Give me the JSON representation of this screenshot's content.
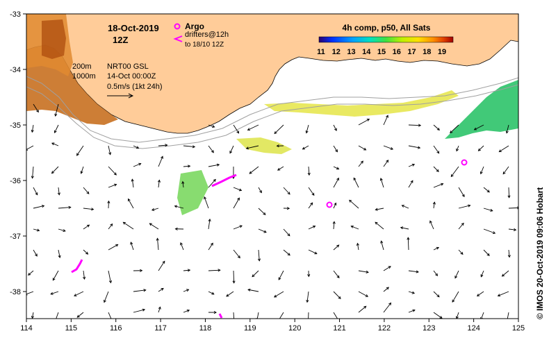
{
  "title": {
    "date": "18-Oct-2019",
    "time": "12Z"
  },
  "legend": {
    "argo_label": "Argo",
    "drifters_label": "drifters@12h",
    "drifters_sub": "to 18/10 12Z",
    "contour_200": "200m",
    "contour_1000": "1000m",
    "product": "NRT00 GSL",
    "product_time": "14-Oct 00:00Z",
    "scale_label": "0.5m/s (1kt 24h)",
    "argo_color": "#ff00ff",
    "drifter_color": "#ff00ff"
  },
  "colorbar": {
    "title": "4h comp, p50, All Sats",
    "ticks": [
      "11",
      "12",
      "13",
      "14",
      "15",
      "16",
      "17",
      "18",
      "19"
    ],
    "colors": [
      "#2a0070",
      "#0030ff",
      "#00a0ff",
      "#00e0c0",
      "#40e040",
      "#c0f000",
      "#ffe000",
      "#ff9000",
      "#e04000",
      "#a00000"
    ]
  },
  "axes": {
    "x_ticks": [
      "114",
      "115",
      "116",
      "117",
      "118",
      "119",
      "120",
      "121",
      "122",
      "123",
      "124",
      "125"
    ],
    "y_ticks": [
      "-33",
      "-34",
      "-35",
      "-36",
      "-37",
      "-38"
    ]
  },
  "credit": "© IMOS 20-Oct-2019 09:06 Hobart",
  "colors": {
    "land": "#ffcc99",
    "coast": "#000000",
    "contour": "#a0a0a0",
    "arrow": "#000000"
  }
}
